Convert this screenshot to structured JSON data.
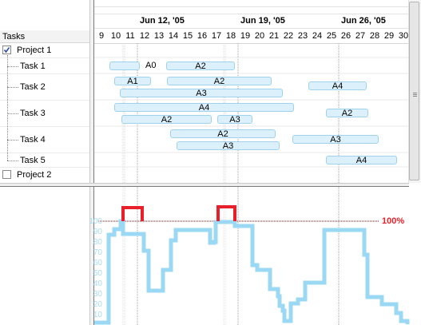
{
  "tasks_header": "Tasks",
  "week_labels": [
    "Jun 12, '05",
    "Jun 19, '05",
    "Jun 26, '05"
  ],
  "days": [
    "9",
    "10",
    "11",
    "12",
    "13",
    "14",
    "15",
    "16",
    "17",
    "18",
    "19",
    "20",
    "21",
    "22",
    "23",
    "24",
    "25",
    "26",
    "27",
    "28",
    "29",
    "30"
  ],
  "tree": {
    "project1": "Project 1",
    "task1": "Task 1",
    "task2": "Task 2",
    "task3": "Task 3",
    "task4": "Task 4",
    "task5": "Task 5",
    "project2": "Project 2",
    "project1_checked": true,
    "project2_checked": false
  },
  "bars": {
    "task1_a0": "A0",
    "task1_a2": "A2",
    "task2_a1": "A1",
    "task2_a2": "A2",
    "task2_a3": "A3",
    "task2_a4": "A4",
    "task3_a4": "A4",
    "task3_a2": "A2",
    "task3_a3": "A3",
    "task3_a2b": "A2",
    "task4_a2": "A2",
    "task4_a3": "A3",
    "task4_a3b": "A3",
    "task5_a4": "A4"
  },
  "histogram": {
    "yticks": [
      "100",
      "90",
      "80",
      "70",
      "60",
      "50",
      "40",
      "30",
      "20",
      "10"
    ],
    "threshold_label": "100%",
    "colors": {
      "load": "#9ad8f3",
      "overload": "#e8202a",
      "threshold": "#8b0000"
    }
  }
}
